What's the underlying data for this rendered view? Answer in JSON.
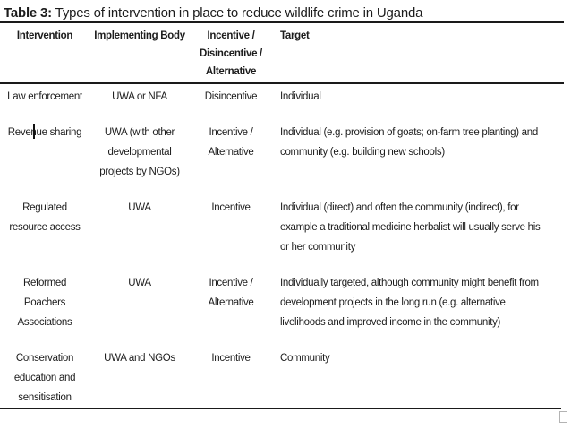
{
  "caption": {
    "label": "Table 3:",
    "text": " Types of intervention in place to reduce wildlife crime in Uganda"
  },
  "table": {
    "columns": [
      "Intervention",
      "Implementing Body",
      "Incentive /\nDisincentive /\nAlternative",
      "Target"
    ],
    "rows": [
      {
        "intervention": "Law enforcement",
        "implementing_body": "UWA or NFA",
        "incentive": "Disincentive",
        "target": "Individual"
      },
      {
        "intervention": "Revenue sharing",
        "implementing_body": "UWA (with other\ndevelopmental\nprojects by NGOs)",
        "incentive": "Incentive /\nAlternative",
        "target": "Individual (e.g. provision of goats; on-farm tree planting) and\ncommunity (e.g. building new schools)"
      },
      {
        "intervention": "Regulated\nresource access",
        "implementing_body": "UWA",
        "incentive": "Incentive",
        "target": "Individual (direct) and often the community (indirect), for\nexample a traditional medicine herbalist will usually serve his\nor her community"
      },
      {
        "intervention": "Reformed\nPoachers\nAssociations",
        "implementing_body": "UWA",
        "incentive": "Incentive /\nAlternative",
        "target": "Individually targeted, although community might benefit from\ndevelopment projects in the long run (e.g. alternative\nlivelihoods and improved income in the community)"
      },
      {
        "intervention": "Conservation\neducation and\nsensitisation",
        "implementing_body": "UWA and NGOs",
        "incentive": "Incentive",
        "target": "Community"
      }
    ]
  },
  "colors": {
    "text": "#1c1c1c",
    "rule": "#1a1a1a",
    "background": "#ffffff"
  }
}
